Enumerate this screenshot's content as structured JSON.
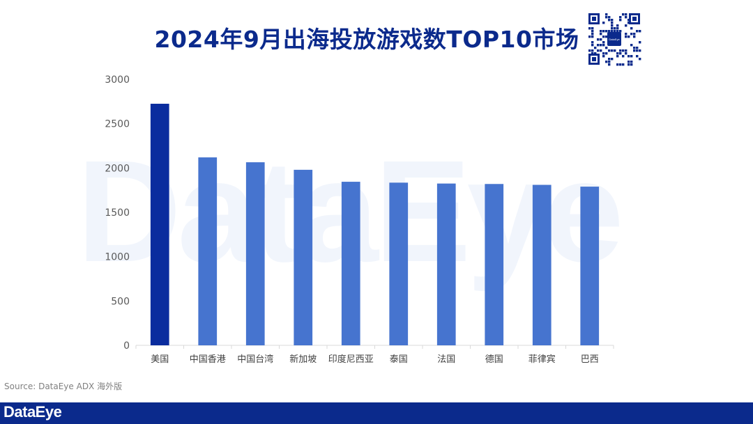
{
  "title": "2024年9月出海投放游戏数TOP10市场",
  "watermark": "DataEye",
  "qr_badge": "DataEye",
  "source": "Source: DataEye ADX 海外版",
  "footer": {
    "logo": "DataEye"
  },
  "colors": {
    "highlight_bar": "#0a2c9e",
    "bar": "#4674cf",
    "title": "#0b2a8c",
    "footer": "#0b2a8c"
  },
  "chart_data": {
    "type": "bar",
    "title": "2024年9月出海投放游戏数TOP10市场",
    "categories": [
      "美国",
      "中国香港",
      "中国台湾",
      "新加坡",
      "印度尼西亚",
      "泰国",
      "法国",
      "德国",
      "菲律宾",
      "巴西"
    ],
    "values": [
      2725,
      2120,
      2065,
      1980,
      1845,
      1835,
      1825,
      1820,
      1810,
      1790
    ],
    "highlight_index": 0,
    "ylim": [
      0,
      3000
    ],
    "yticks": [
      "0",
      "500",
      "1000",
      "1500",
      "2000",
      "2500",
      "3000"
    ],
    "xlabel": "",
    "ylabel": "",
    "grid": false,
    "legend": false
  }
}
